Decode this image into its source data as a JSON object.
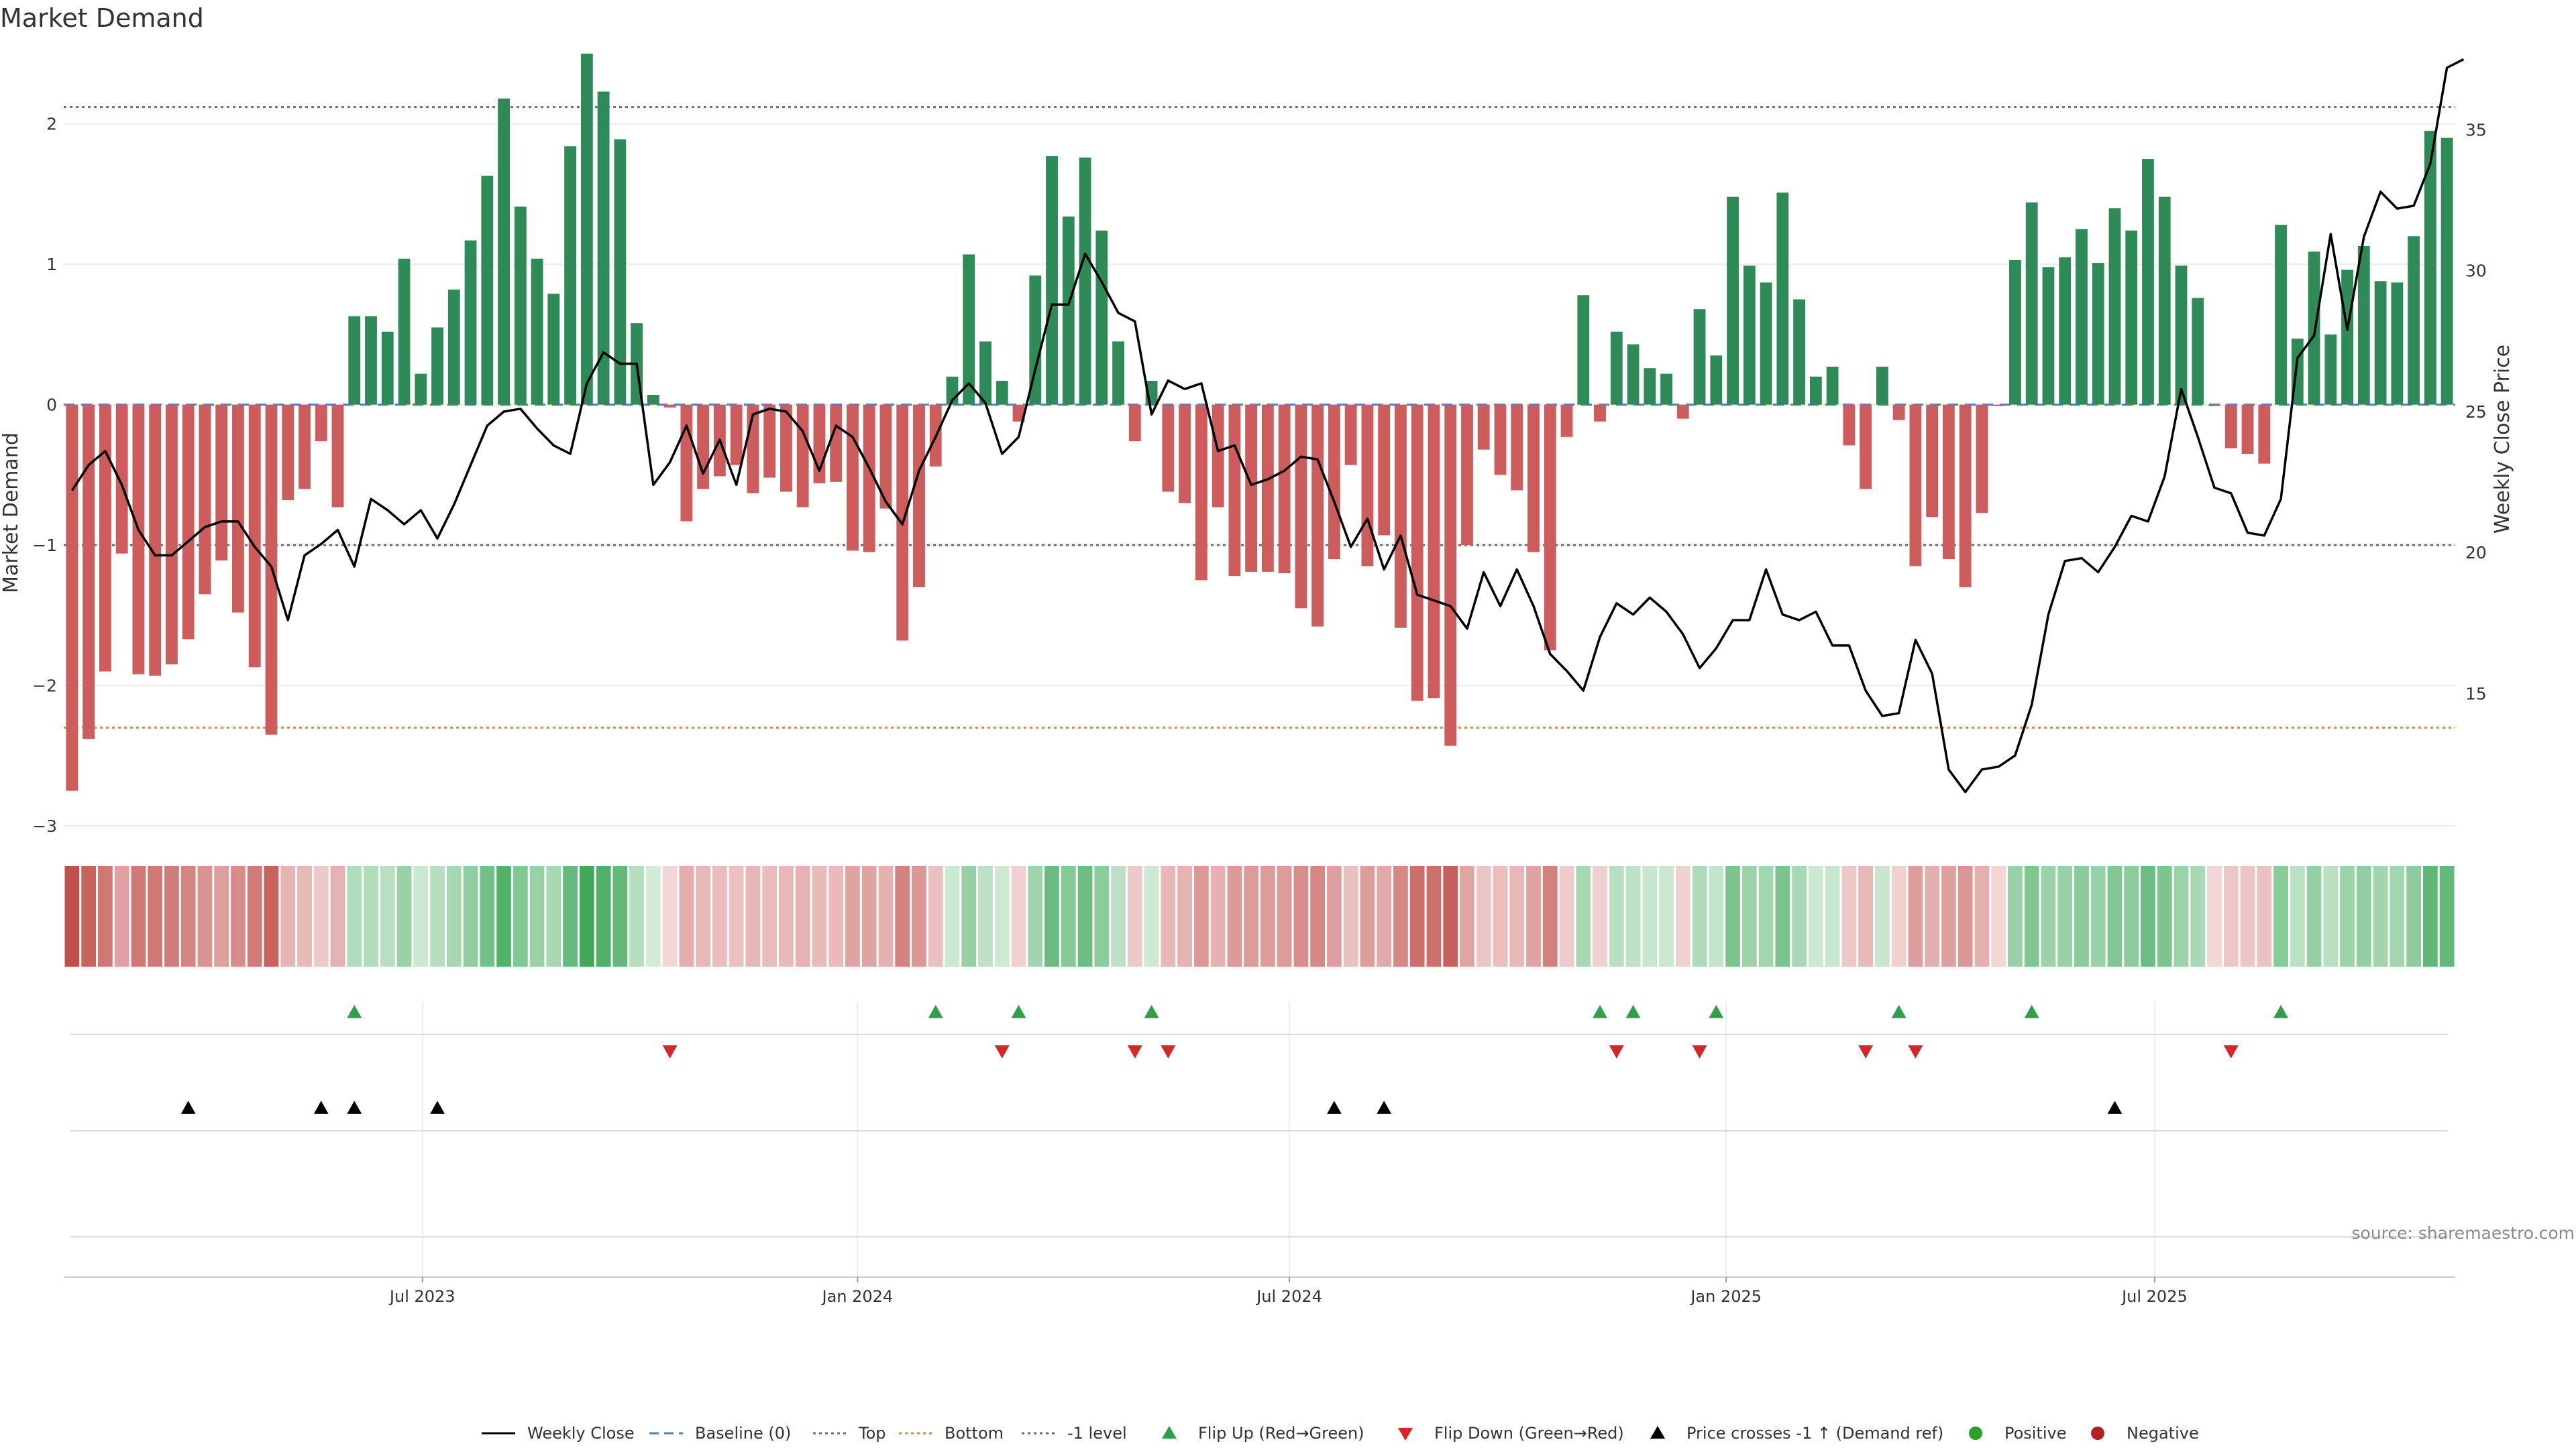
{
  "chart_data": {
    "type": "bar",
    "title": "Market Demand",
    "ylabel_left": "Market Demand",
    "ylabel_right": "Weekly Close Price",
    "source": "source: sharemaestro.com",
    "ylim_left": [
      -3.0,
      2.5
    ],
    "ylim_right": [
      10.3,
      37.7
    ],
    "yticks_left": [
      2,
      1,
      0,
      -1,
      -2,
      -3
    ],
    "yticks_left_labels": [
      "2",
      "1",
      "0",
      "−1",
      "−2",
      "−3"
    ],
    "yticks_right": [
      35,
      30,
      25,
      20,
      15
    ],
    "date_ticks": [
      {
        "label": "Jul 2023",
        "week": 21.6
      },
      {
        "label": "Jan 2024",
        "week": 47.8
      },
      {
        "label": "Jul 2024",
        "week": 73.8
      },
      {
        "label": "Jan 2025",
        "week": 100.1
      },
      {
        "label": "Jul 2025",
        "week": 125.9
      }
    ],
    "reference_levels": {
      "top": 2.12,
      "bottom": -2.3,
      "minus_one": -1.0,
      "baseline": 0
    },
    "series": [
      {
        "name": "Market Demand",
        "kind": "bar",
        "values": [
          -2.75,
          -2.38,
          -1.9,
          -1.06,
          -1.92,
          -1.93,
          -1.85,
          -1.67,
          -1.35,
          -1.11,
          -1.48,
          -1.87,
          -2.35,
          -0.68,
          -0.6,
          -0.26,
          -0.73,
          0.63,
          0.63,
          0.52,
          1.04,
          0.22,
          0.55,
          0.82,
          1.17,
          1.63,
          2.18,
          1.41,
          1.04,
          0.79,
          1.84,
          2.5,
          2.23,
          1.89,
          0.58,
          0.07,
          -0.02,
          -0.83,
          -0.6,
          -0.51,
          -0.43,
          -0.63,
          -0.52,
          -0.62,
          -0.73,
          -0.56,
          -0.55,
          -1.04,
          -1.05,
          -0.74,
          -1.68,
          -1.3,
          -0.44,
          0.2,
          1.07,
          0.45,
          0.17,
          -0.12,
          0.92,
          1.77,
          1.34,
          1.76,
          1.24,
          0.45,
          -0.26,
          0.17,
          -0.62,
          -0.7,
          -1.25,
          -0.73,
          -1.22,
          -1.19,
          -1.19,
          -1.2,
          -1.45,
          -1.58,
          -1.1,
          -0.43,
          -1.15,
          -0.93,
          -1.59,
          -2.11,
          -2.09,
          -2.43,
          -1.0,
          -0.32,
          -0.5,
          -0.61,
          -1.05,
          -1.75,
          -0.23,
          0.78,
          -0.12,
          0.52,
          0.43,
          0.26,
          0.22,
          -0.1,
          0.68,
          0.35,
          1.48,
          0.99,
          0.87,
          1.51,
          0.75,
          0.2,
          0.27,
          -0.29,
          -0.6,
          0.27,
          -0.11,
          -1.15,
          -0.8,
          -1.1,
          -1.3,
          -0.77,
          -0.01,
          1.03,
          1.44,
          0.98,
          1.05,
          1.25,
          1.01,
          1.4,
          1.24,
          1.75,
          1.48,
          0.99,
          0.76,
          -0.01,
          -0.31,
          -0.35,
          -0.42,
          1.28,
          0.47,
          1.09,
          0.5,
          0.96,
          1.13,
          0.88,
          0.87,
          1.2,
          1.95,
          1.9
        ]
      },
      {
        "name": "Weekly Close",
        "kind": "line",
        "values": [
          22.2,
          23.1,
          23.6,
          22.4,
          20.8,
          19.9,
          19.9,
          20.4,
          20.9,
          21.1,
          21.1,
          20.2,
          19.5,
          17.6,
          19.9,
          20.3,
          20.8,
          19.5,
          21.9,
          21.5,
          21.0,
          21.5,
          20.5,
          21.7,
          23.1,
          24.5,
          25.0,
          25.1,
          24.4,
          23.8,
          23.5,
          26.0,
          27.1,
          26.7,
          26.7,
          22.4,
          23.2,
          24.5,
          22.8,
          24.0,
          22.4,
          24.9,
          25.1,
          25.0,
          24.3,
          22.9,
          24.5,
          24.1,
          23.0,
          21.8,
          21.0,
          22.9,
          24.1,
          25.4,
          26.0,
          25.3,
          23.5,
          24.1,
          26.5,
          28.8,
          28.8,
          30.6,
          29.6,
          28.5,
          28.2,
          24.9,
          26.1,
          25.8,
          26.0,
          23.6,
          23.8,
          22.4,
          22.6,
          22.9,
          23.4,
          23.3,
          21.8,
          20.2,
          21.2,
          19.4,
          20.6,
          18.5,
          18.3,
          18.1,
          17.3,
          19.3,
          18.1,
          19.4,
          18.1,
          16.4,
          15.8,
          15.1,
          17.0,
          18.2,
          17.8,
          18.4,
          17.9,
          17.1,
          15.9,
          16.6,
          17.6,
          17.6,
          19.4,
          17.8,
          17.6,
          17.9,
          16.7,
          16.7,
          15.1,
          14.2,
          14.3,
          16.9,
          15.7,
          12.3,
          11.5,
          12.3,
          12.4,
          12.8,
          14.6,
          17.8,
          19.7,
          19.8,
          19.3,
          20.2,
          21.3,
          21.1,
          22.7,
          25.8,
          24.1,
          22.3,
          22.1,
          20.7,
          20.6,
          21.9,
          26.9,
          27.7,
          31.3,
          27.9,
          31.2,
          32.8,
          32.2,
          32.3,
          33.8,
          37.2,
          37.5
        ]
      }
    ],
    "intensity_strip": {
      "values_source": "Market Demand"
    },
    "flip_up_weeks": [
      17,
      52,
      57,
      65,
      92,
      94,
      99,
      110,
      118,
      133
    ],
    "flip_down_weeks": [
      36,
      56,
      64,
      66,
      93,
      98,
      108,
      111,
      130
    ],
    "price_cross_weeks": [
      7,
      15,
      17,
      22,
      76,
      79,
      123
    ],
    "legend": [
      {
        "label": "Weekly Close",
        "marker": "line-solid",
        "color": "#000000"
      },
      {
        "label": "Baseline (0)",
        "marker": "line-dashed",
        "color": "#4f7dba"
      },
      {
        "label": "Top",
        "marker": "line-dotted",
        "color": "#6a6aa8"
      },
      {
        "label": "Bottom",
        "marker": "line-dotted",
        "color": "#e08a2e"
      },
      {
        "label": "-1 level",
        "marker": "line-dotted",
        "color": "#666677"
      },
      {
        "label": "Flip Up (Red→Green)",
        "marker": "triangle-up",
        "color": "#2ca04c"
      },
      {
        "label": "Flip Down (Green→Red)",
        "marker": "triangle-down",
        "color": "#d62728"
      },
      {
        "label": "Price crosses -1 ↑ (Demand ref)",
        "marker": "triangle-up",
        "color": "#000000"
      },
      {
        "label": "Positive",
        "marker": "circle",
        "color": "#2ca02c"
      },
      {
        "label": "Negative",
        "marker": "circle",
        "color": "#b22222"
      }
    ],
    "colors": {
      "positive_bar": "#2e8b57",
      "negative_bar": "#cd5c5c",
      "line": "#000000",
      "top_line": "#6a6aa8",
      "bottom_line": "#e08a2e",
      "minus_one_line": "#666677",
      "baseline": "#4f7dba",
      "flip_up": "#2ca04c",
      "flip_down": "#d62728",
      "cross": "#000000",
      "grid": "#ececec"
    }
  }
}
